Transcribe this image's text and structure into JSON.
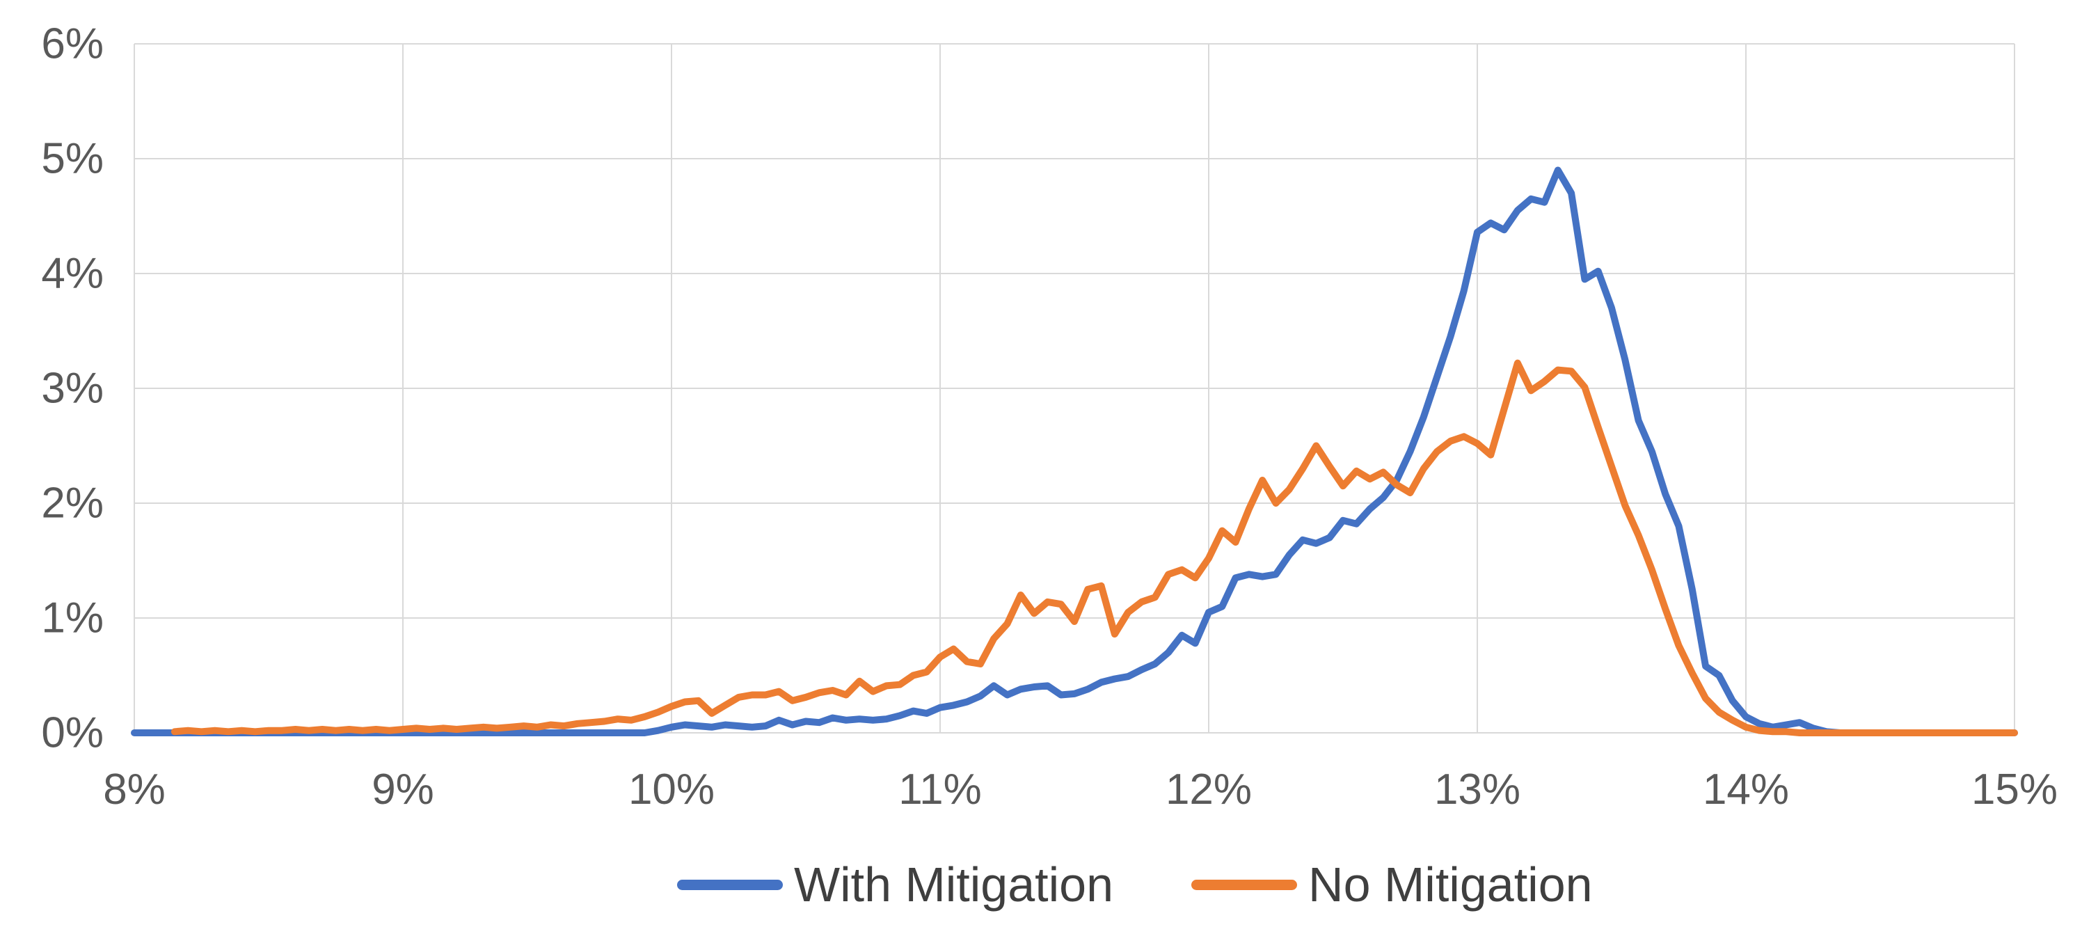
{
  "page": {
    "background": "#FFFFFF"
  },
  "chart_data": {
    "type": "line",
    "title": "",
    "xlabel": "",
    "ylabel": "",
    "xlim": [
      8,
      15
    ],
    "ylim": [
      0,
      6
    ],
    "grid": true,
    "grid_color": "#D9D9D9",
    "tick_label_color": "#595959",
    "legend_text_color": "#3F3F3F",
    "legend_position": "bottom-center",
    "x_tick_values": [
      8,
      9,
      10,
      11,
      12,
      13,
      14,
      15
    ],
    "x_tick_labels": [
      "8%",
      "9%",
      "10%",
      "11%",
      "12%",
      "13%",
      "14%",
      "15%"
    ],
    "y_tick_values": [
      0,
      1,
      2,
      3,
      4,
      5,
      6
    ],
    "y_tick_labels": [
      "0%",
      "1%",
      "2%",
      "3%",
      "4%",
      "5%",
      "6%"
    ],
    "series": [
      {
        "name": "With Mitigation",
        "color": "#4472C4",
        "x0": 8.0,
        "dx": 0.05,
        "values": [
          0,
          0,
          0,
          0,
          0,
          0,
          0,
          0,
          0,
          0,
          0,
          0,
          0,
          0,
          0,
          0,
          0,
          0,
          0,
          0,
          0,
          0,
          0,
          0,
          0,
          0,
          0,
          0,
          0,
          0,
          0,
          0,
          0,
          0,
          0,
          0,
          0,
          0,
          0,
          0.02,
          0.05,
          0.07,
          0.06,
          0.05,
          0.07,
          0.06,
          0.05,
          0.06,
          0.11,
          0.07,
          0.1,
          0.09,
          0.13,
          0.11,
          0.12,
          0.11,
          0.12,
          0.15,
          0.19,
          0.17,
          0.22,
          0.24,
          0.27,
          0.32,
          0.41,
          0.33,
          0.38,
          0.4,
          0.41,
          0.33,
          0.34,
          0.38,
          0.44,
          0.47,
          0.49,
          0.55,
          0.6,
          0.7,
          0.85,
          0.78,
          1.05,
          1.1,
          1.35,
          1.38,
          1.36,
          1.38,
          1.55,
          1.68,
          1.65,
          1.7,
          1.85,
          1.82,
          1.95,
          2.05,
          2.2,
          2.45,
          2.75,
          3.1,
          3.45,
          3.85,
          4.36,
          4.44,
          4.38,
          4.55,
          4.65,
          4.62,
          4.9,
          4.7,
          3.95,
          4.02,
          3.7,
          3.25,
          2.72,
          2.45,
          2.08,
          1.8,
          1.25,
          0.58,
          0.5,
          0.28,
          0.14,
          0.08,
          0.05,
          0.07,
          0.09,
          0.04,
          0.01,
          0,
          0,
          0,
          0,
          0,
          0,
          0,
          0,
          0,
          0,
          0,
          0,
          0,
          0
        ]
      },
      {
        "name": "No Mitigation",
        "color": "#ED7D31",
        "x0": 8.15,
        "dx": 0.05,
        "values": [
          0.01,
          0.02,
          0.01,
          0.02,
          0.01,
          0.02,
          0.01,
          0.02,
          0.02,
          0.03,
          0.02,
          0.03,
          0.02,
          0.03,
          0.02,
          0.03,
          0.02,
          0.03,
          0.04,
          0.03,
          0.04,
          0.03,
          0.04,
          0.05,
          0.04,
          0.05,
          0.06,
          0.05,
          0.07,
          0.06,
          0.08,
          0.09,
          0.1,
          0.12,
          0.11,
          0.14,
          0.18,
          0.23,
          0.27,
          0.28,
          0.17,
          0.24,
          0.31,
          0.33,
          0.33,
          0.36,
          0.28,
          0.31,
          0.35,
          0.37,
          0.33,
          0.45,
          0.36,
          0.41,
          0.42,
          0.5,
          0.53,
          0.66,
          0.73,
          0.62,
          0.6,
          0.82,
          0.95,
          1.2,
          1.04,
          1.14,
          1.12,
          0.97,
          1.25,
          1.28,
          0.86,
          1.05,
          1.14,
          1.18,
          1.38,
          1.42,
          1.35,
          1.52,
          1.76,
          1.66,
          1.95,
          2.2,
          2.0,
          2.12,
          2.3,
          2.5,
          2.32,
          2.15,
          2.28,
          2.21,
          2.27,
          2.16,
          2.09,
          2.3,
          2.45,
          2.54,
          2.58,
          2.52,
          2.42,
          2.82,
          3.22,
          2.98,
          3.06,
          3.16,
          3.15,
          3.01,
          2.66,
          2.32,
          1.98,
          1.72,
          1.42,
          1.08,
          0.76,
          0.52,
          0.3,
          0.18,
          0.11,
          0.05,
          0.02,
          0.01,
          0.01,
          0,
          0,
          0,
          0,
          0,
          0,
          0,
          0,
          0,
          0,
          0,
          0,
          0,
          0,
          0,
          0,
          0
        ]
      }
    ]
  }
}
